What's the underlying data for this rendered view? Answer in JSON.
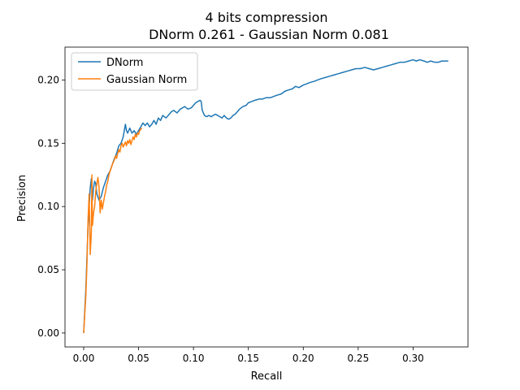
{
  "chart_data": {
    "type": "line",
    "title": "4 bits compression",
    "subtitle": "DNorm 0.261 - Gaussian Norm 0.081",
    "xlabel": "Recall",
    "ylabel": "Precision",
    "xlim": [
      -0.017,
      0.35
    ],
    "ylim": [
      -0.011,
      0.226
    ],
    "x_ticks": [
      0.0,
      0.05,
      0.1,
      0.15,
      0.2,
      0.25,
      0.3
    ],
    "x_tick_labels": [
      "0.00",
      "0.05",
      "0.10",
      "0.15",
      "0.20",
      "0.25",
      "0.30"
    ],
    "y_ticks": [
      0.0,
      0.05,
      0.1,
      0.15,
      0.2
    ],
    "y_tick_labels": [
      "0.00",
      "0.05",
      "0.10",
      "0.15",
      "0.20"
    ],
    "grid": false,
    "legend_position": "top-left",
    "series": [
      {
        "name": "DNorm",
        "color": "#1f77b4",
        "points": [
          [
            0.0,
            0.0
          ],
          [
            0.002,
            0.035
          ],
          [
            0.003,
            0.06
          ],
          [
            0.004,
            0.085
          ],
          [
            0.005,
            0.1
          ],
          [
            0.006,
            0.115
          ],
          [
            0.007,
            0.122
          ],
          [
            0.008,
            0.105
          ],
          [
            0.009,
            0.115
          ],
          [
            0.01,
            0.12
          ],
          [
            0.011,
            0.118
          ],
          [
            0.012,
            0.11
          ],
          [
            0.014,
            0.105
          ],
          [
            0.016,
            0.108
          ],
          [
            0.018,
            0.115
          ],
          [
            0.02,
            0.12
          ],
          [
            0.022,
            0.125
          ],
          [
            0.024,
            0.128
          ],
          [
            0.026,
            0.133
          ],
          [
            0.028,
            0.138
          ],
          [
            0.03,
            0.142
          ],
          [
            0.032,
            0.148
          ],
          [
            0.034,
            0.15
          ],
          [
            0.036,
            0.155
          ],
          [
            0.037,
            0.16
          ],
          [
            0.038,
            0.165
          ],
          [
            0.039,
            0.16
          ],
          [
            0.04,
            0.158
          ],
          [
            0.042,
            0.162
          ],
          [
            0.044,
            0.158
          ],
          [
            0.046,
            0.16
          ],
          [
            0.048,
            0.157
          ],
          [
            0.05,
            0.16
          ],
          [
            0.052,
            0.163
          ],
          [
            0.054,
            0.166
          ],
          [
            0.056,
            0.164
          ],
          [
            0.058,
            0.166
          ],
          [
            0.06,
            0.163
          ],
          [
            0.062,
            0.165
          ],
          [
            0.064,
            0.168
          ],
          [
            0.066,
            0.165
          ],
          [
            0.068,
            0.17
          ],
          [
            0.07,
            0.168
          ],
          [
            0.072,
            0.172
          ],
          [
            0.075,
            0.17
          ],
          [
            0.078,
            0.173
          ],
          [
            0.08,
            0.175
          ],
          [
            0.082,
            0.176
          ],
          [
            0.085,
            0.174
          ],
          [
            0.088,
            0.177
          ],
          [
            0.09,
            0.178
          ],
          [
            0.092,
            0.179
          ],
          [
            0.095,
            0.177
          ],
          [
            0.098,
            0.178
          ],
          [
            0.1,
            0.18
          ],
          [
            0.102,
            0.182
          ],
          [
            0.104,
            0.183
          ],
          [
            0.106,
            0.184
          ],
          [
            0.107,
            0.183
          ],
          [
            0.108,
            0.176
          ],
          [
            0.11,
            0.172
          ],
          [
            0.112,
            0.171
          ],
          [
            0.114,
            0.172
          ],
          [
            0.116,
            0.171
          ],
          [
            0.118,
            0.172
          ],
          [
            0.12,
            0.173
          ],
          [
            0.122,
            0.172
          ],
          [
            0.124,
            0.171
          ],
          [
            0.126,
            0.17
          ],
          [
            0.128,
            0.172
          ],
          [
            0.13,
            0.17
          ],
          [
            0.132,
            0.169
          ],
          [
            0.134,
            0.17
          ],
          [
            0.136,
            0.172
          ],
          [
            0.138,
            0.173
          ],
          [
            0.14,
            0.175
          ],
          [
            0.142,
            0.177
          ],
          [
            0.145,
            0.179
          ],
          [
            0.148,
            0.18
          ],
          [
            0.15,
            0.182
          ],
          [
            0.153,
            0.183
          ],
          [
            0.156,
            0.184
          ],
          [
            0.16,
            0.185
          ],
          [
            0.163,
            0.185
          ],
          [
            0.166,
            0.186
          ],
          [
            0.17,
            0.186
          ],
          [
            0.173,
            0.187
          ],
          [
            0.176,
            0.188
          ],
          [
            0.18,
            0.189
          ],
          [
            0.183,
            0.191
          ],
          [
            0.186,
            0.192
          ],
          [
            0.19,
            0.193
          ],
          [
            0.193,
            0.195
          ],
          [
            0.196,
            0.194
          ],
          [
            0.2,
            0.196
          ],
          [
            0.203,
            0.197
          ],
          [
            0.206,
            0.198
          ],
          [
            0.21,
            0.199
          ],
          [
            0.213,
            0.2
          ],
          [
            0.216,
            0.201
          ],
          [
            0.22,
            0.202
          ],
          [
            0.224,
            0.203
          ],
          [
            0.228,
            0.204
          ],
          [
            0.232,
            0.205
          ],
          [
            0.236,
            0.206
          ],
          [
            0.24,
            0.207
          ],
          [
            0.244,
            0.208
          ],
          [
            0.248,
            0.209
          ],
          [
            0.252,
            0.209
          ],
          [
            0.256,
            0.21
          ],
          [
            0.26,
            0.209
          ],
          [
            0.264,
            0.208
          ],
          [
            0.268,
            0.209
          ],
          [
            0.272,
            0.21
          ],
          [
            0.276,
            0.211
          ],
          [
            0.28,
            0.212
          ],
          [
            0.284,
            0.213
          ],
          [
            0.288,
            0.214
          ],
          [
            0.292,
            0.214
          ],
          [
            0.296,
            0.215
          ],
          [
            0.3,
            0.216
          ],
          [
            0.303,
            0.215
          ],
          [
            0.306,
            0.216
          ],
          [
            0.31,
            0.215
          ],
          [
            0.313,
            0.214
          ],
          [
            0.316,
            0.215
          ],
          [
            0.32,
            0.214
          ],
          [
            0.323,
            0.214
          ],
          [
            0.326,
            0.215
          ],
          [
            0.33,
            0.215
          ],
          [
            0.332,
            0.215
          ]
        ]
      },
      {
        "name": "Gaussian Norm",
        "color": "#ff7f0e",
        "points": [
          [
            0.0,
            0.0
          ],
          [
            0.002,
            0.03
          ],
          [
            0.003,
            0.055
          ],
          [
            0.004,
            0.09
          ],
          [
            0.005,
            0.11
          ],
          [
            0.006,
            0.062
          ],
          [
            0.007,
            0.08
          ],
          [
            0.0075,
            0.125
          ],
          [
            0.008,
            0.085
          ],
          [
            0.009,
            0.095
          ],
          [
            0.01,
            0.1
          ],
          [
            0.011,
            0.112
          ],
          [
            0.012,
            0.118
          ],
          [
            0.013,
            0.123
          ],
          [
            0.014,
            0.115
          ],
          [
            0.015,
            0.095
          ],
          [
            0.016,
            0.105
          ],
          [
            0.017,
            0.098
          ],
          [
            0.018,
            0.103
          ],
          [
            0.019,
            0.108
          ],
          [
            0.02,
            0.112
          ],
          [
            0.021,
            0.117
          ],
          [
            0.022,
            0.12
          ],
          [
            0.023,
            0.125
          ],
          [
            0.024,
            0.128
          ],
          [
            0.025,
            0.13
          ],
          [
            0.026,
            0.133
          ],
          [
            0.027,
            0.135
          ],
          [
            0.028,
            0.137
          ],
          [
            0.029,
            0.14
          ],
          [
            0.03,
            0.138
          ],
          [
            0.031,
            0.142
          ],
          [
            0.032,
            0.145
          ],
          [
            0.033,
            0.143
          ],
          [
            0.034,
            0.148
          ],
          [
            0.035,
            0.15
          ],
          [
            0.036,
            0.147
          ],
          [
            0.037,
            0.149
          ],
          [
            0.038,
            0.151
          ],
          [
            0.039,
            0.148
          ],
          [
            0.04,
            0.152
          ],
          [
            0.041,
            0.15
          ],
          [
            0.042,
            0.153
          ],
          [
            0.043,
            0.149
          ],
          [
            0.044,
            0.152
          ],
          [
            0.045,
            0.155
          ],
          [
            0.046,
            0.153
          ],
          [
            0.047,
            0.157
          ],
          [
            0.048,
            0.155
          ],
          [
            0.049,
            0.158
          ],
          [
            0.05,
            0.157
          ],
          [
            0.051,
            0.16
          ],
          [
            0.052,
            0.161
          ],
          [
            0.053,
            0.162
          ]
        ]
      }
    ]
  }
}
